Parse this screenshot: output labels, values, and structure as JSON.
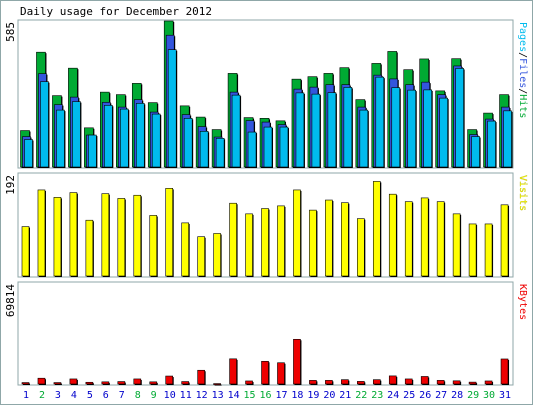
{
  "title": "Daily usage for December 2012",
  "colors": {
    "hits": "#00aa33",
    "files": "#3355dd",
    "pages": "#00bbee",
    "visits": "#ffff00",
    "kbytes": "#ee0000",
    "weekend_day": "#00aa33",
    "weekday": "#0000cc",
    "frame": "#8fa7a8",
    "background": "#ffffff"
  },
  "chart_data": [
    {
      "type": "bar",
      "name": "hits-files-pages",
      "ymax_label": "585",
      "ylim": [
        0,
        585
      ],
      "legend": [
        {
          "text": "Pages",
          "color": "#00bbee"
        },
        {
          "text": "/",
          "color": "#000000"
        },
        {
          "text": "Files",
          "color": "#3355dd"
        },
        {
          "text": "/",
          "color": "#000000"
        },
        {
          "text": "Hits",
          "color": "#00aa33"
        }
      ],
      "categories": [
        "1",
        "2",
        "3",
        "4",
        "5",
        "6",
        "7",
        "8",
        "9",
        "10",
        "11",
        "12",
        "13",
        "14",
        "15",
        "16",
        "17",
        "18",
        "19",
        "20",
        "21",
        "22",
        "23",
        "24",
        "25",
        "26",
        "27",
        "28",
        "29",
        "30",
        "31"
      ],
      "series": [
        {
          "name": "Hits",
          "values": [
            146,
            460,
            286,
            396,
            157,
            300,
            290,
            335,
            258,
            585,
            245,
            200,
            150,
            375,
            198,
            195,
            185,
            352,
            362,
            375,
            398,
            270,
            415,
            463,
            390,
            433,
            305,
            434,
            150,
            216,
            290
          ]
        },
        {
          "name": "Files",
          "values": [
            122,
            374,
            250,
            280,
            128,
            259,
            240,
            270,
            220,
            528,
            210,
            162,
            120,
            300,
            186,
            180,
            170,
            312,
            320,
            330,
            330,
            240,
            368,
            353,
            330,
            340,
            290,
            405,
            130,
            192,
            240
          ]
        },
        {
          "name": "Pages",
          "values": [
            110,
            342,
            228,
            262,
            128,
            247,
            232,
            255,
            212,
            470,
            195,
            143,
            115,
            288,
            140,
            160,
            160,
            297,
            292,
            298,
            319,
            228,
            360,
            318,
            308,
            309,
            276,
            395,
            122,
            184,
            225
          ]
        }
      ]
    },
    {
      "type": "bar",
      "name": "visits",
      "ymax_label": "192",
      "ylim": [
        0,
        192
      ],
      "legend": [
        {
          "text": "Visits",
          "color": "#ffff00"
        }
      ],
      "categories": [
        "1",
        "2",
        "3",
        "4",
        "5",
        "6",
        "7",
        "8",
        "9",
        "10",
        "11",
        "12",
        "13",
        "14",
        "15",
        "16",
        "17",
        "18",
        "19",
        "20",
        "21",
        "22",
        "23",
        "24",
        "25",
        "26",
        "27",
        "28",
        "29",
        "30",
        "31"
      ],
      "series": [
        {
          "name": "Visits",
          "values": [
            93,
            162,
            148,
            157,
            105,
            155,
            146,
            152,
            114,
            165,
            100,
            74,
            80,
            137,
            117,
            127,
            132,
            162,
            124,
            143,
            138,
            108,
            178,
            154,
            140,
            147,
            140,
            117,
            98,
            98,
            134
          ]
        }
      ]
    },
    {
      "type": "bar",
      "name": "kbytes",
      "ymax_label": "69814",
      "ylim": [
        0,
        69814
      ],
      "legend": [
        {
          "text": "KBytes",
          "color": "#ee0000"
        }
      ],
      "categories": [
        "1",
        "2",
        "3",
        "4",
        "5",
        "6",
        "7",
        "8",
        "9",
        "10",
        "11",
        "12",
        "13",
        "14",
        "15",
        "16",
        "17",
        "18",
        "19",
        "20",
        "21",
        "22",
        "23",
        "24",
        "25",
        "26",
        "27",
        "28",
        "29",
        "30",
        "31"
      ],
      "series": [
        {
          "name": "KBytes",
          "values": [
            1000,
            4000,
            1000,
            3500,
            1200,
            1500,
            1700,
            3500,
            1500,
            5500,
            1700,
            9500,
            300,
            17400,
            2100,
            15700,
            14700,
            30900,
            2500,
            2500,
            3000,
            1800,
            3000,
            5600,
            3500,
            5200,
            2500,
            2200,
            1300,
            2100,
            17300
          ]
        }
      ]
    }
  ],
  "x_labels": [
    {
      "text": "1",
      "weekend": false
    },
    {
      "text": "2",
      "weekend": true
    },
    {
      "text": "3",
      "weekend": false
    },
    {
      "text": "4",
      "weekend": false
    },
    {
      "text": "5",
      "weekend": false
    },
    {
      "text": "6",
      "weekend": false
    },
    {
      "text": "7",
      "weekend": false
    },
    {
      "text": "8",
      "weekend": true
    },
    {
      "text": "9",
      "weekend": true
    },
    {
      "text": "10",
      "weekend": false
    },
    {
      "text": "11",
      "weekend": false
    },
    {
      "text": "12",
      "weekend": false
    },
    {
      "text": "13",
      "weekend": false
    },
    {
      "text": "14",
      "weekend": false
    },
    {
      "text": "15",
      "weekend": true
    },
    {
      "text": "16",
      "weekend": true
    },
    {
      "text": "17",
      "weekend": false
    },
    {
      "text": "18",
      "weekend": false
    },
    {
      "text": "19",
      "weekend": false
    },
    {
      "text": "20",
      "weekend": false
    },
    {
      "text": "21",
      "weekend": false
    },
    {
      "text": "22",
      "weekend": true
    },
    {
      "text": "23",
      "weekend": true
    },
    {
      "text": "24",
      "weekend": false
    },
    {
      "text": "25",
      "weekend": false
    },
    {
      "text": "26",
      "weekend": false
    },
    {
      "text": "27",
      "weekend": false
    },
    {
      "text": "28",
      "weekend": false
    },
    {
      "text": "29",
      "weekend": true
    },
    {
      "text": "30",
      "weekend": true
    },
    {
      "text": "31",
      "weekend": false
    }
  ]
}
